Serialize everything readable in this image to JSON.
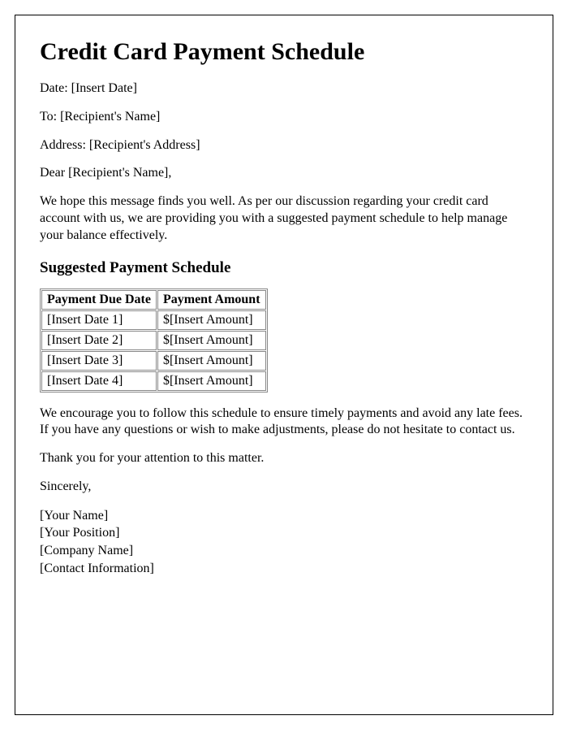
{
  "title": "Credit Card Payment Schedule",
  "date_line": "Date: [Insert Date]",
  "to_line": "To: [Recipient's Name]",
  "address_line": "Address: [Recipient's Address]",
  "salutation": "Dear [Recipient's Name],",
  "intro_paragraph": "We hope this message finds you well. As per our discussion regarding your credit card account with us, we are providing you with a suggested payment schedule to help manage your balance effectively.",
  "schedule_heading": "Suggested Payment Schedule",
  "table": {
    "columns": [
      "Payment Due Date",
      "Payment Amount"
    ],
    "rows": [
      [
        "[Insert Date 1]",
        "$[Insert Amount]"
      ],
      [
        "[Insert Date 2]",
        "$[Insert Amount]"
      ],
      [
        "[Insert Date 3]",
        "$[Insert Amount]"
      ],
      [
        "[Insert Date 4]",
        "$[Insert Amount]"
      ]
    ],
    "border_color": "#888888",
    "header_fontweight": "bold",
    "cell_fontsize": 16
  },
  "closing_paragraph": "We encourage you to follow this schedule to ensure timely payments and avoid any late fees. If you have any questions or wish to make adjustments, please do not hesitate to contact us.",
  "thanks_line": "Thank you for your attention to this matter.",
  "signoff": "Sincerely,",
  "signature": {
    "name": "[Your Name]",
    "position": "[Your Position]",
    "company": "[Company Name]",
    "contact": "[Contact Information]"
  },
  "style": {
    "page_border_color": "#000000",
    "background_color": "#ffffff",
    "title_fontsize": 30,
    "body_fontsize": 16,
    "h2_fontsize": 19,
    "font_family": "Times New Roman"
  }
}
